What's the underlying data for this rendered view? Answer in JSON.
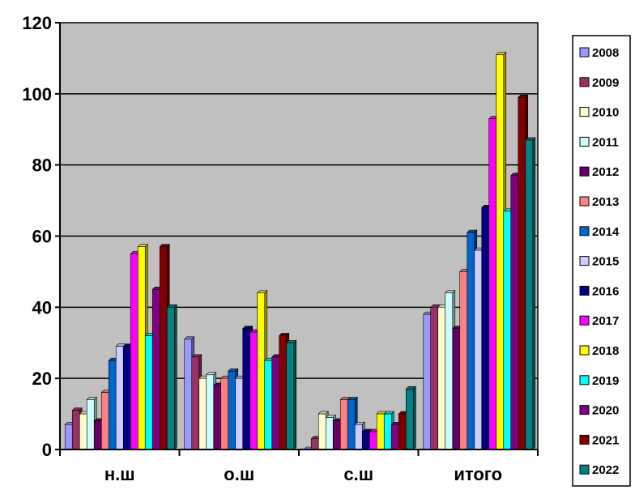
{
  "chart_data": {
    "type": "bar",
    "categories": [
      "н.ш",
      "о.ш",
      "с.ш",
      "итого"
    ],
    "ylim": [
      0,
      120
    ],
    "yticks": [
      0,
      20,
      40,
      60,
      80,
      100,
      120
    ],
    "grid": true,
    "legend_position": "right",
    "plot_background": "#c0c0c0",
    "series": [
      {
        "name": "2008",
        "color": "#9999ff",
        "values": [
          7,
          31,
          0,
          38
        ]
      },
      {
        "name": "2009",
        "color": "#993366",
        "values": [
          11,
          26,
          3,
          40
        ]
      },
      {
        "name": "2010",
        "color": "#ffffcc",
        "values": [
          10,
          20,
          10,
          40
        ]
      },
      {
        "name": "2011",
        "color": "#ccffff",
        "values": [
          14,
          21,
          9,
          44
        ]
      },
      {
        "name": "2012",
        "color": "#660066",
        "values": [
          8,
          18,
          8,
          34
        ]
      },
      {
        "name": "2013",
        "color": "#ff8080",
        "values": [
          16,
          20,
          14,
          50
        ]
      },
      {
        "name": "2014",
        "color": "#0066cc",
        "values": [
          25,
          22,
          14,
          61
        ]
      },
      {
        "name": "2015",
        "color": "#ccccff",
        "values": [
          29,
          20,
          7,
          56
        ]
      },
      {
        "name": "2016",
        "color": "#000080",
        "values": [
          29,
          34,
          5,
          68
        ]
      },
      {
        "name": "2017",
        "color": "#ff00ff",
        "values": [
          55,
          33,
          5,
          93
        ]
      },
      {
        "name": "2018",
        "color": "#ffff00",
        "values": [
          57,
          44,
          10,
          111
        ]
      },
      {
        "name": "2019",
        "color": "#00ffff",
        "values": [
          32,
          25,
          10,
          67
        ]
      },
      {
        "name": "2020",
        "color": "#800080",
        "values": [
          45,
          26,
          7,
          77
        ]
      },
      {
        "name": "2021",
        "color": "#800000",
        "values": [
          57,
          32,
          10,
          99
        ]
      },
      {
        "name": "2022",
        "color": "#008080",
        "values": [
          40,
          30,
          17,
          87
        ]
      }
    ]
  }
}
